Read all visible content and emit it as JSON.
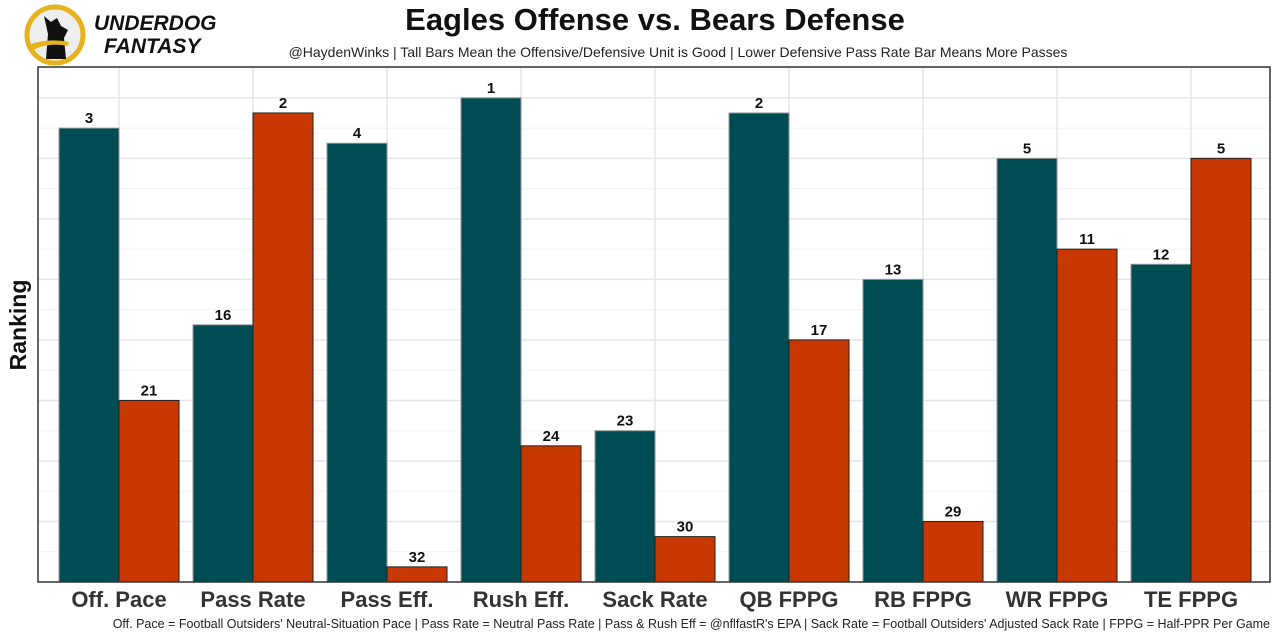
{
  "logo": {
    "line1": "UNDERDOG",
    "line2": "FANTASY"
  },
  "title": "Eagles Offense vs. Bears Defense",
  "subtitle": "@HaydenWinks | Tall Bars Mean the Offensive/Defensive Unit is Good | Lower Defensive Pass Rate Bar Means More Passes",
  "caption": "Off. Pace = Football Outsiders' Neutral-Situation Pace | Pass Rate = Neutral Pass Rate | Pass & Rush Eff = @nflfastR's EPA | Sack Rate = Football Outsiders' Adjusted Sack Rate | FPPG = Half-PPR Per Game",
  "chart_data": {
    "type": "bar",
    "ylabel": "Ranking",
    "xlabel": "",
    "categories": [
      "Off. Pace",
      "Pass Rate",
      "Pass Eff.",
      "Rush Eff.",
      "Sack Rate",
      "QB FPPG",
      "RB FPPG",
      "WR FPPG",
      "TE FPPG"
    ],
    "series": [
      {
        "name": "Eagles Offense",
        "color": "#004c54",
        "values": [
          3,
          16,
          4,
          1,
          23,
          2,
          13,
          5,
          12
        ]
      },
      {
        "name": "Bears Defense",
        "color": "#c83803",
        "values": [
          21,
          2,
          32,
          24,
          30,
          17,
          29,
          11,
          5
        ]
      }
    ],
    "ranking_range": [
      1,
      32
    ],
    "grid": true
  }
}
